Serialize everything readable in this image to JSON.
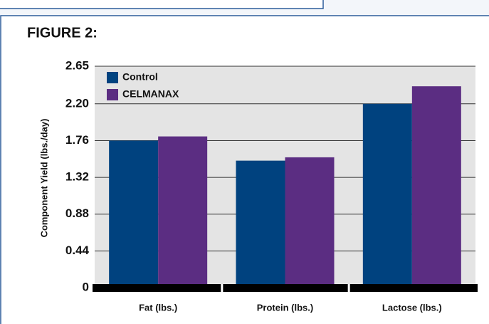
{
  "chart_data": {
    "type": "bar",
    "title": "FIGURE 2:",
    "ylabel": "Component Yield (lbs./day)",
    "categories": [
      "Fat (lbs.)",
      "Protein (lbs.)",
      "Lactose (lbs.)"
    ],
    "series": [
      {
        "name": "Control",
        "color": "#00427f",
        "values": [
          1.76,
          1.52,
          2.2
        ]
      },
      {
        "name": "CELMANAX",
        "color": "#5b2d82",
        "values": [
          1.81,
          1.56,
          2.41
        ]
      }
    ],
    "ylim": [
      0,
      2.65
    ],
    "yticks": [
      0,
      0.44,
      0.88,
      1.32,
      1.76,
      {
        "value": 2.2,
        "label": "2.20"
      },
      2.65
    ],
    "grid": true,
    "legend": "upper left"
  }
}
